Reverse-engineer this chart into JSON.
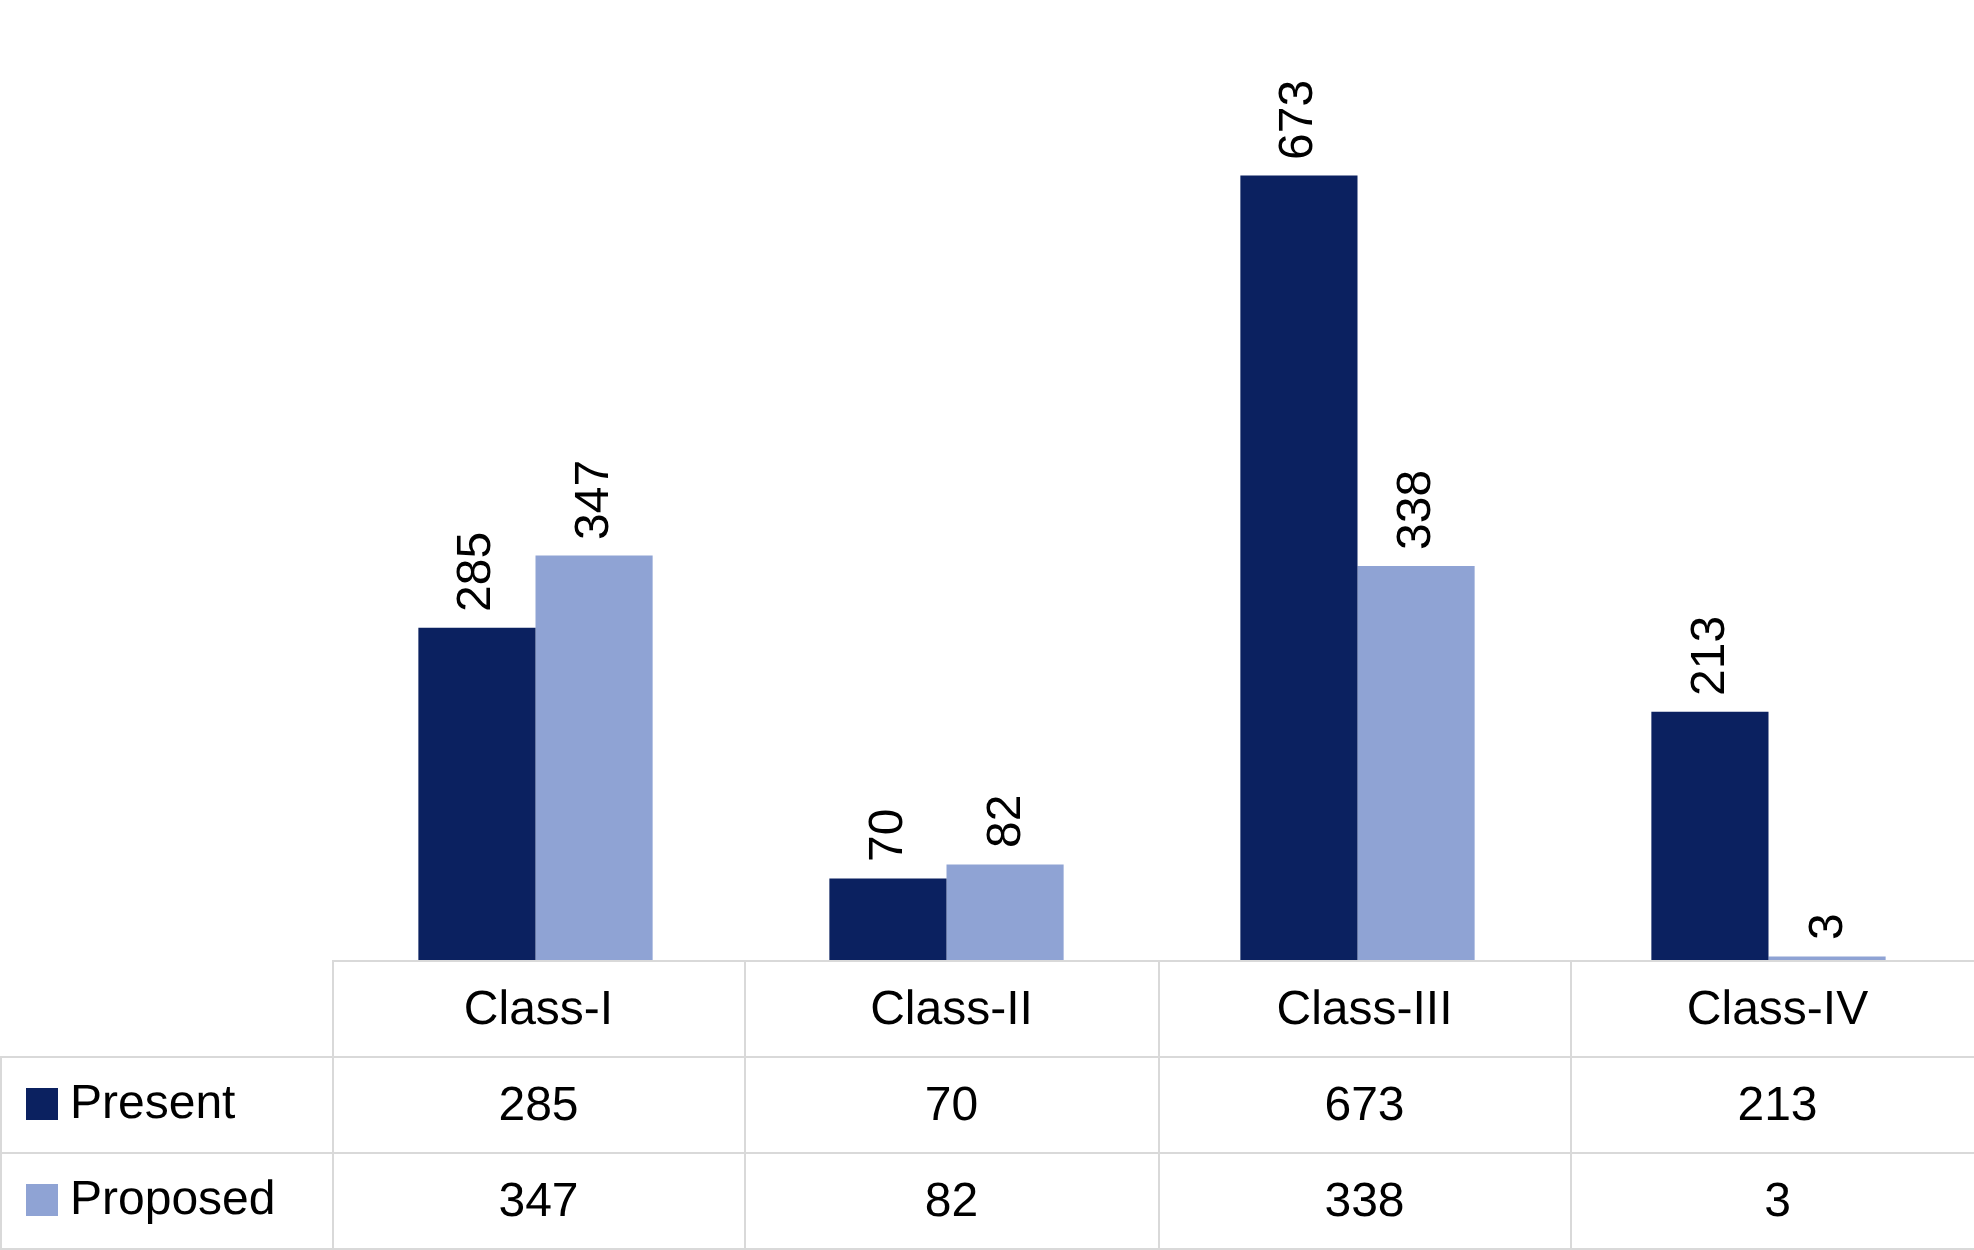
{
  "chart_data": {
    "type": "bar",
    "categories": [
      "Class-I",
      "Class-II",
      "Class-III",
      "Class-IV"
    ],
    "series": [
      {
        "name": "Present",
        "color": "#0b2160",
        "values": [
          285,
          70,
          673,
          213
        ]
      },
      {
        "name": "Proposed",
        "color": "#8fa3d4",
        "values": [
          347,
          82,
          338,
          3
        ]
      }
    ],
    "annotations": [
      "285",
      "70",
      "673",
      "213",
      "347",
      "82",
      "338",
      "3"
    ],
    "data_labels": true,
    "legend": "bottom"
  }
}
